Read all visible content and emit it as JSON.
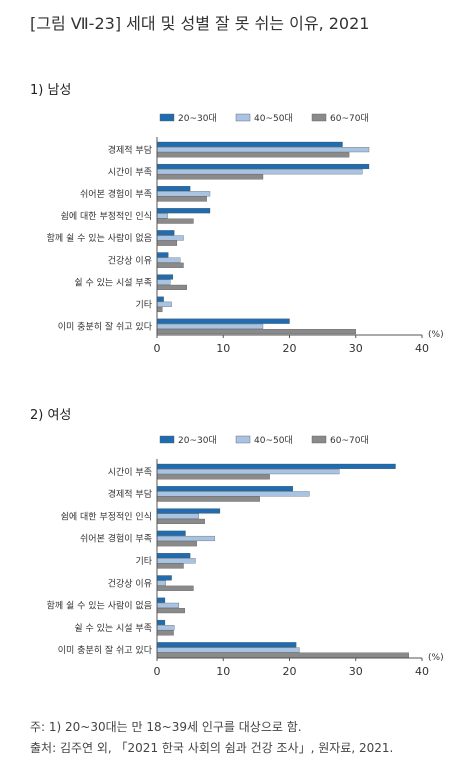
{
  "figure_title": "[그림 Ⅶ-23] 세대 및 성별 잘 못 쉬는 이유, 2021",
  "colors": {
    "s1": "#1f6db0",
    "s2": "#a9c3e3",
    "s3": "#8a8a8a",
    "axis": "#555555"
  },
  "notes": {
    "line1": "주: 1) 20~30대는 만 18~39세 인구를 대상으로 함.",
    "line2": "출처: 김주연 외, 「2021 한국 사회의 쉼과 건강 조사」, 원자료, 2021."
  },
  "chart_data": [
    {
      "type": "bar",
      "orientation": "horizontal",
      "title": "1) 남성",
      "legend_position": "top",
      "unit": "(%)",
      "xlim": [
        0,
        40
      ],
      "xticks": [
        0,
        10,
        20,
        30,
        40
      ],
      "categories": [
        "경제적 부담",
        "시간이 부족",
        "쉬어본 경험이 부족",
        "쉼에 대한 부정적인 인식",
        "함께 쉴 수 있는 사람이 없음",
        "건강상 이유",
        "쉴 수 있는 시설 부족",
        "기타",
        "이미 충분히 잘 쉬고 있다"
      ],
      "series": [
        {
          "name": "20~30대",
          "values": [
            28.0,
            32.0,
            5.0,
            8.0,
            2.6,
            1.7,
            2.4,
            1.0,
            20.0
          ]
        },
        {
          "name": "40~50대",
          "values": [
            32.0,
            31.0,
            8.0,
            1.6,
            4.0,
            3.5,
            2.0,
            2.2,
            16.0
          ]
        },
        {
          "name": "60~70대",
          "values": [
            29.0,
            16.0,
            7.5,
            5.5,
            3.0,
            4.0,
            4.5,
            0.8,
            30.0
          ]
        }
      ]
    },
    {
      "type": "bar",
      "orientation": "horizontal",
      "title": "2) 여성",
      "legend_position": "top",
      "unit": "(%)",
      "xlim": [
        0,
        40
      ],
      "xticks": [
        0,
        10,
        20,
        30,
        40
      ],
      "categories": [
        "시간이 부족",
        "경제적 부담",
        "쉼에 대한 부정적인 인식",
        "쉬어본 경험이 부족",
        "기타",
        "건강상 이유",
        "함께 쉴 수 있는 사람이 없음",
        "쉴 수 있는 시설 부족",
        "이미 충분히 잘 쉬고 있다"
      ],
      "series": [
        {
          "name": "20~30대",
          "values": [
            36.0,
            20.5,
            9.5,
            4.3,
            5.0,
            2.2,
            1.2,
            1.2,
            21.0
          ]
        },
        {
          "name": "40~50대",
          "values": [
            27.5,
            23.0,
            6.3,
            8.7,
            5.8,
            1.3,
            3.3,
            2.6,
            21.5
          ]
        },
        {
          "name": "60~70대",
          "values": [
            17.0,
            15.5,
            7.2,
            6.0,
            4.0,
            5.5,
            4.2,
            2.5,
            38.0
          ]
        }
      ]
    }
  ]
}
